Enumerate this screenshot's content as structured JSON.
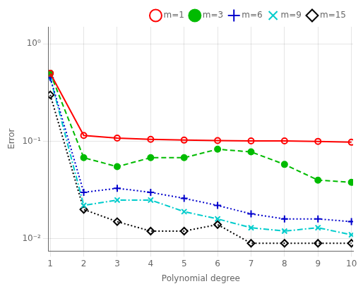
{
  "chart_data": {
    "type": "line",
    "x": [
      1,
      2,
      3,
      4,
      5,
      6,
      7,
      8,
      9,
      10
    ],
    "series": [
      {
        "name": "m=1",
        "color": "#ff0000",
        "marker": "open circle",
        "line_style": "solid",
        "values": [
          0.5,
          0.115,
          0.108,
          0.105,
          0.103,
          0.102,
          0.101,
          0.101,
          0.1,
          0.098
        ]
      },
      {
        "name": "m=3",
        "color": "#00bb00",
        "marker": "circle",
        "line_style": "dashed",
        "values": [
          0.5,
          0.068,
          0.055,
          0.068,
          0.068,
          0.083,
          0.078,
          0.058,
          0.04,
          0.038
        ]
      },
      {
        "name": "m=6",
        "color": "#0000cc",
        "marker": "plus",
        "line_style": "dotted",
        "values": [
          0.45,
          0.03,
          0.033,
          0.03,
          0.026,
          0.022,
          0.018,
          0.016,
          0.016,
          0.015
        ]
      },
      {
        "name": "m=9",
        "color": "#00cccc",
        "marker": "x",
        "line_style": "dashdot",
        "values": [
          0.45,
          0.022,
          0.025,
          0.025,
          0.019,
          0.016,
          0.013,
          0.012,
          0.013,
          0.011
        ]
      },
      {
        "name": "m=15",
        "color": "#000000",
        "marker": "open diamond",
        "line_style": "dotted",
        "values": [
          0.3,
          0.02,
          0.015,
          0.012,
          0.012,
          0.014,
          0.009,
          0.009,
          0.009,
          0.009
        ]
      }
    ],
    "xlabel": "Polynomial degree",
    "ylabel": "Error",
    "xlim": [
      0.95,
      10.05
    ],
    "xticks": [
      1,
      2,
      3,
      4,
      5,
      6,
      7,
      8,
      9,
      10
    ],
    "ylim": [
      0.0075,
      1.5
    ],
    "yticks": [
      {
        "value": 0.01,
        "label": "10⁻²"
      },
      {
        "value": 0.1,
        "label": "10⁻¹"
      },
      {
        "value": 1.0,
        "label": "10⁰"
      }
    ],
    "log": "y",
    "grid": true,
    "legend": "upper right"
  }
}
